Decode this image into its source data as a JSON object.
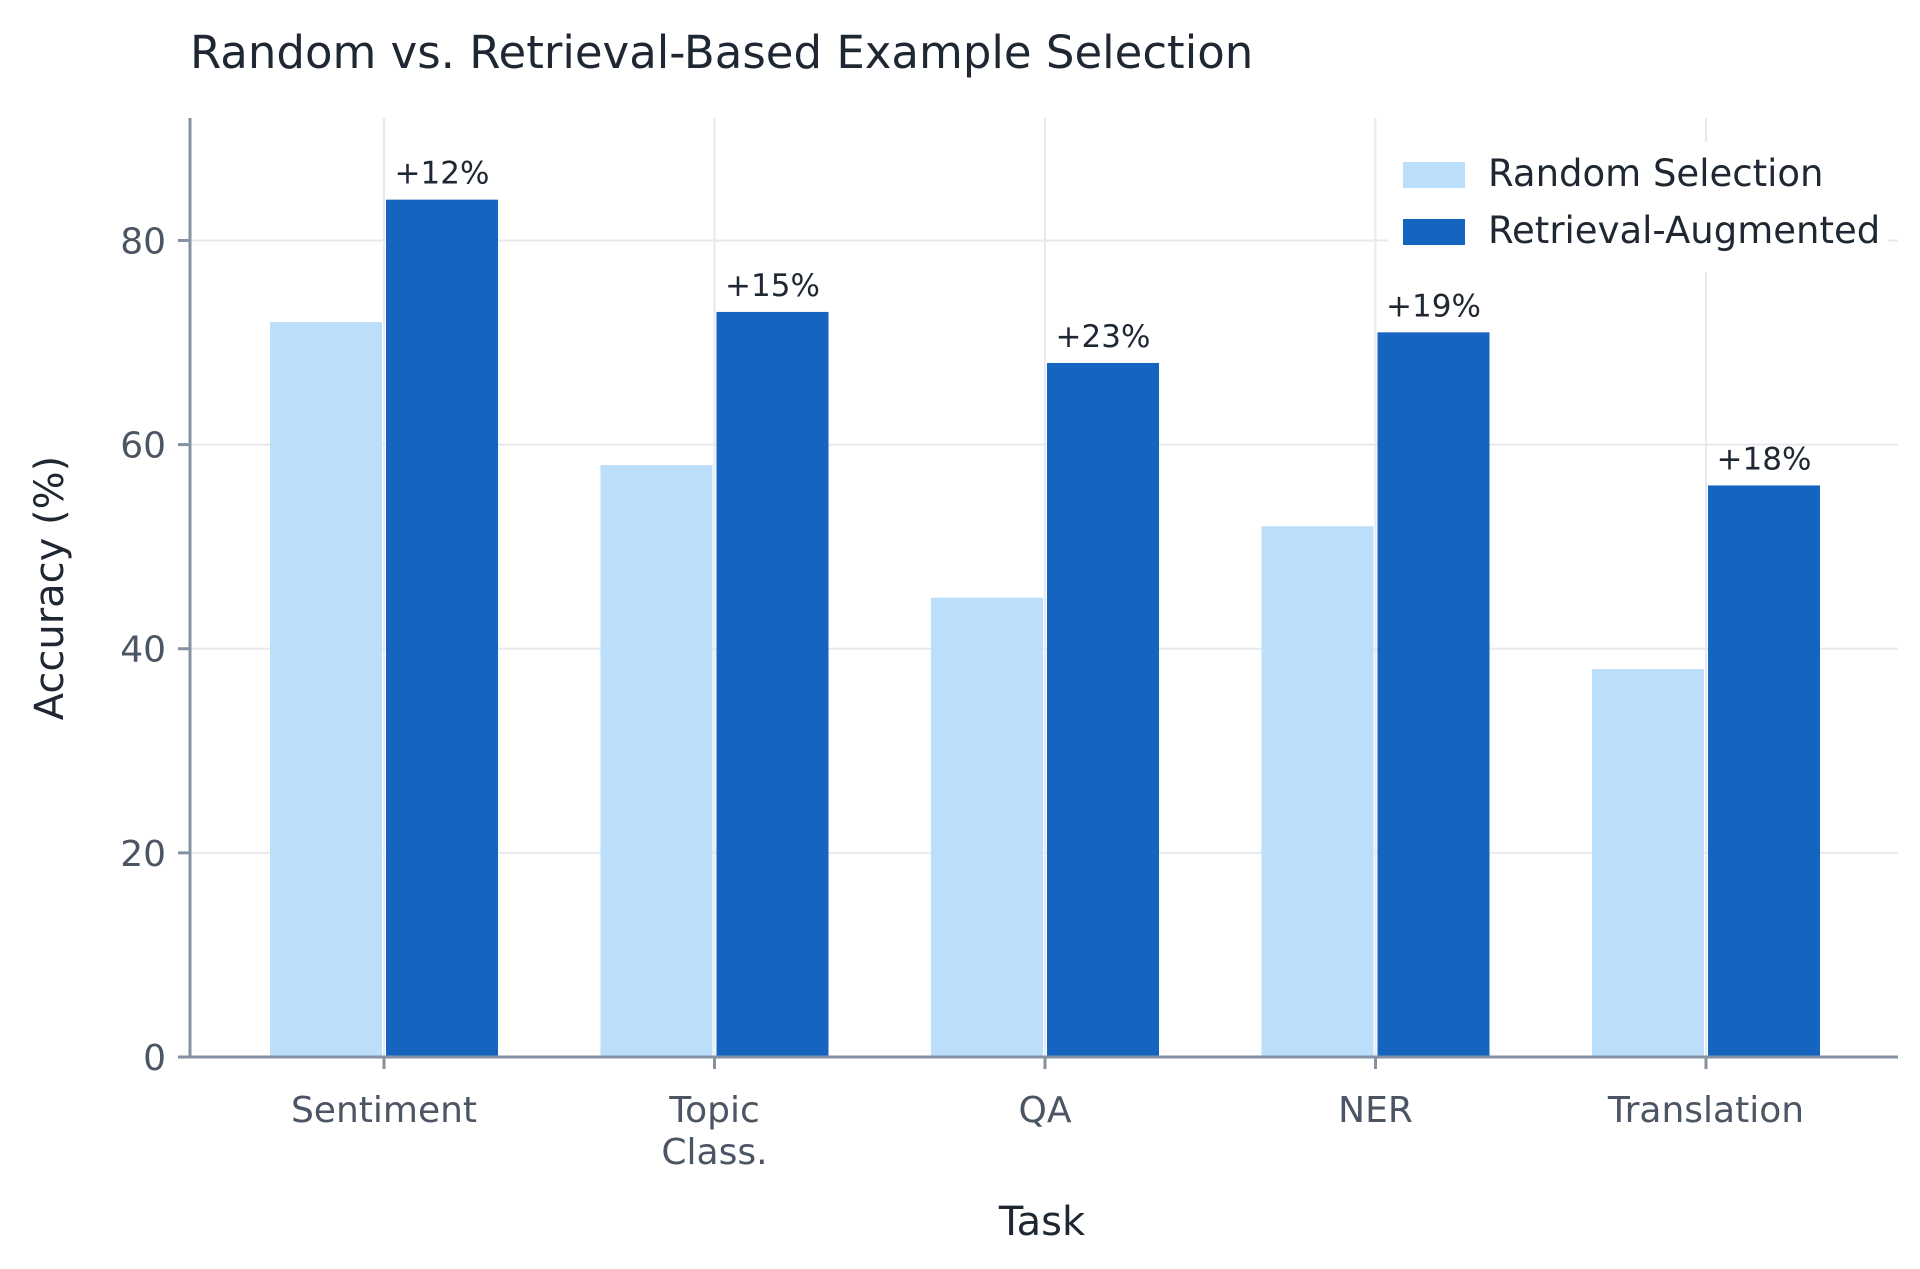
{
  "chart_data": {
    "type": "bar",
    "title": "Random vs. Retrieval-Based Example Selection",
    "xlabel": "Task",
    "ylabel": "Accuracy (%)",
    "categories": [
      [
        "Sentiment"
      ],
      [
        "Topic",
        "Class."
      ],
      [
        "QA"
      ],
      [
        "NER"
      ],
      [
        "Translation"
      ]
    ],
    "series": [
      {
        "name": "Random Selection",
        "color": "#bbdefb",
        "values": [
          72,
          58,
          45,
          52,
          38
        ]
      },
      {
        "name": "Retrieval-Augmented",
        "color": "#1565c0",
        "values": [
          84,
          73,
          68,
          71,
          56
        ]
      }
    ],
    "annotations": [
      "+12%",
      "+15%",
      "+23%",
      "+19%",
      "+18%"
    ],
    "ylim": [
      0,
      92
    ],
    "yticks": [
      0,
      20,
      40,
      60,
      80
    ],
    "grid": true,
    "legend": "top-right"
  }
}
